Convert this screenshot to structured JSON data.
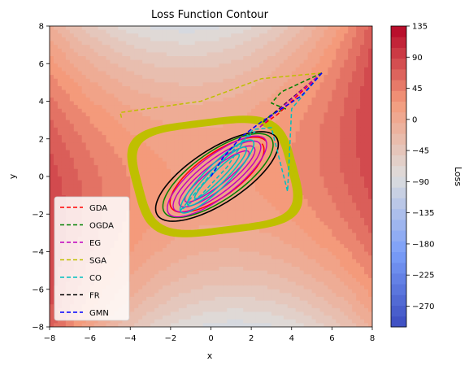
{
  "chart_data": {
    "type": "contour",
    "title": "Loss Function Contour",
    "xlabel": "x",
    "ylabel": "y",
    "xlim": [
      -8,
      8
    ],
    "ylim": [
      -8,
      8
    ],
    "xticks": [
      "−8",
      "−6",
      "−4",
      "−2",
      "0",
      "2",
      "4",
      "6",
      "8"
    ],
    "yticks": [
      "−8",
      "−6",
      "−4",
      "−2",
      "0",
      "2",
      "4",
      "6",
      "8"
    ],
    "colorbar": {
      "label": "Loss",
      "colormap": "coolwarm",
      "range": [
        -300,
        135
      ],
      "ticks": [
        "135",
        "90",
        "45",
        "0",
        "−45",
        "−90",
        "−135",
        "−180",
        "−225",
        "−270"
      ]
    },
    "legend_position": "lower-left",
    "series": [
      {
        "name": "GDA",
        "color": "#ff0000",
        "style": "dashed"
      },
      {
        "name": "OGDA",
        "color": "#008000",
        "style": "dashed"
      },
      {
        "name": "EG",
        "color": "#bf00bf",
        "style": "dashed"
      },
      {
        "name": "SGA",
        "color": "#bfbf00",
        "style": "dashed"
      },
      {
        "name": "CO",
        "color": "#00bfbf",
        "style": "dashed"
      },
      {
        "name": "FR",
        "color": "#000000",
        "style": "dashed"
      },
      {
        "name": "GMN",
        "color": "#0000ff",
        "style": "dashed"
      }
    ],
    "paths": {
      "start": [
        5.5,
        5.5
      ],
      "GMN": [
        [
          5.5,
          5.5
        ],
        [
          4.5,
          4.3
        ],
        [
          3.5,
          3.6
        ],
        [
          2.5,
          2.9
        ],
        [
          1.5,
          2.1
        ],
        [
          0.6,
          1.0
        ],
        [
          0.0,
          0.0
        ]
      ],
      "CO": [
        [
          5.5,
          5.5
        ],
        [
          4.0,
          3.6
        ],
        [
          3.8,
          -0.8
        ],
        [
          3.0,
          2.6
        ],
        [
          2.1,
          2.5
        ],
        [
          0.3,
          0.5
        ],
        [
          -1.5,
          -1.8
        ],
        [
          -0.5,
          -1.0
        ],
        [
          0.8,
          0.5
        ],
        [
          1.7,
          2.0
        ],
        [
          2.2,
          2.4
        ]
      ],
      "SGA": [
        [
          5.5,
          5.5
        ],
        [
          2.5,
          5.2
        ],
        [
          -0.5,
          4.0
        ],
        [
          -4.5,
          3.4
        ],
        [
          -4.4,
          3.0
        ]
      ],
      "OGDA_trail": [
        [
          5.5,
          5.5
        ],
        [
          3.5,
          4.5
        ],
        [
          3.0,
          3.9
        ],
        [
          3.7,
          3.6
        ],
        [
          3.0,
          3.3
        ],
        [
          2.5,
          2.8
        ]
      ],
      "GDA_trail": [
        [
          5.5,
          5.5
        ],
        [
          3.3,
          3.3
        ],
        [
          2.5,
          2.7
        ]
      ],
      "EG_trail": [
        [
          5.5,
          5.5
        ],
        [
          3.0,
          3.2
        ],
        [
          2.3,
          2.5
        ]
      ],
      "FR_trail": [
        [
          5.5,
          5.5
        ],
        [
          3.5,
          3.7
        ],
        [
          2.6,
          2.9
        ]
      ]
    }
  }
}
